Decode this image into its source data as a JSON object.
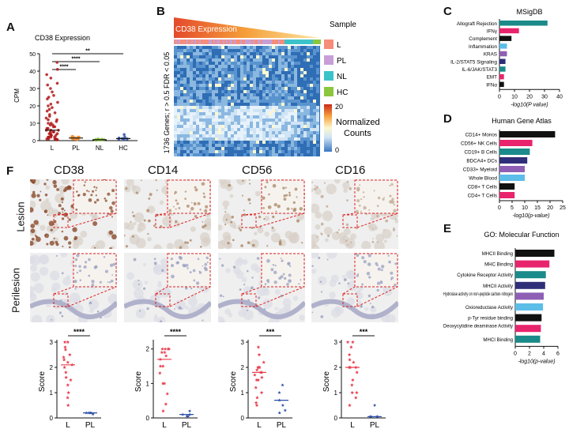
{
  "panel_letters": {
    "a": "A",
    "b": "B",
    "c": "C",
    "d": "D",
    "e": "E",
    "f": "F"
  },
  "colors": {
    "red": "#e0201c",
    "pink": "#e8246d",
    "black": "#111111",
    "teal": "#1a8a8a",
    "lightblue": "#5bbde8",
    "purple": "#8e5fb5",
    "navy": "#2f2e78",
    "orange": "#f08a2c",
    "lavender": "#c79fd6",
    "green": "#8cc63f",
    "salmon": "#f58d7a",
    "cyan": "#3cc3c9"
  },
  "panel_a": {
    "chart_data": {
      "type": "scatter",
      "title": "CD38 Expression",
      "ylabel": "CPM",
      "categories": [
        "L",
        "PL",
        "NL",
        "HC"
      ],
      "yticks": [
        "0",
        "10",
        "20",
        "30",
        "40",
        "50"
      ],
      "ylim": [
        0,
        50
      ],
      "medians": [
        6,
        1.5,
        0.5,
        1.2
      ],
      "significance": [
        "****",
        "****",
        "**"
      ]
    }
  },
  "panel_b": {
    "title": "CD38 Expression",
    "ylabel": "1736 Genes; r > 0.5 FDR < 0.05",
    "legend_title": "Sample",
    "legend": [
      {
        "label": "L",
        "color": "#f58d7a"
      },
      {
        "label": "PL",
        "color": "#c79fd6"
      },
      {
        "label": "NL",
        "color": "#3cc3c9"
      },
      {
        "label": "HC",
        "color": "#8cc63f"
      }
    ],
    "scale_max": "20",
    "scale_min": "0",
    "scale_label_1": "Normalized",
    "scale_label_2": "Counts"
  },
  "panel_c": {
    "chart_data": {
      "type": "bar",
      "title": "MSigDB",
      "xlabel": "-log10(P value)",
      "categories": [
        "Allograft Rejection",
        "IFNγ",
        "Complement",
        "Inflammation",
        "KRAS",
        "IL-2/STAT5 Signaling",
        "IL-6/JAK/STAT3",
        "EMT",
        "IFNα"
      ],
      "values": [
        32,
        13,
        8,
        5,
        5,
        4,
        4,
        3,
        3
      ],
      "colors": [
        "#1a8a8a",
        "#e8246d",
        "#111111",
        "#5bbde8",
        "#8e5fb5",
        "#2f2e78",
        "#1a8a8a",
        "#e8246d",
        "#111111"
      ],
      "xticks": [
        "0",
        "10",
        "20",
        "30",
        "40"
      ],
      "xlim": [
        0,
        40
      ]
    }
  },
  "panel_d": {
    "chart_data": {
      "type": "bar",
      "title": "Human  Gene  Atlas",
      "xlabel": "-log10(p-value)",
      "categories": [
        "CD14+ Monos",
        "CD56+ NK Cells",
        "CD19+ B Cells",
        "BDCA4+ DCs",
        "CD33+ Myeloid",
        "Whole Blood",
        "CD8+ T Cells",
        "CD4+ T Cells"
      ],
      "values": [
        22,
        13,
        12,
        11,
        10,
        10,
        6,
        6
      ],
      "colors": [
        "#111111",
        "#e8246d",
        "#1a8a8a",
        "#2f2e78",
        "#8e5fb5",
        "#5bbde8",
        "#111111",
        "#e8246d"
      ],
      "xticks": [
        "0",
        "5",
        "10",
        "15",
        "20",
        "25"
      ],
      "xlim": [
        0,
        25
      ]
    }
  },
  "panel_e": {
    "chart_data": {
      "type": "bar",
      "title": "GO: Molecular Function",
      "xlabel": "-log10(p-value)",
      "categories": [
        "MHCII Binding",
        "MHC Binding",
        "Cytokine Receptor Activity",
        "MHCII Activity",
        "Hydrolase activity on non-peptide carbon-nitrogen",
        "Oxioreductase Activity",
        "p-Tyr residue binding",
        "Deoxycytidine deaminase Activity",
        "MHCI Binding"
      ],
      "values": [
        5.5,
        4.8,
        4.3,
        4.2,
        4.0,
        3.9,
        3.7,
        3.6,
        3.5
      ],
      "colors": [
        "#111111",
        "#e8246d",
        "#1a8a8a",
        "#2f2e78",
        "#8e5fb5",
        "#5bbde8",
        "#111111",
        "#e8246d",
        "#1a8a8a"
      ],
      "xticks": [
        "0",
        "2",
        "4",
        "6"
      ],
      "xlim": [
        0,
        6
      ]
    }
  },
  "panel_f": {
    "markers": [
      "CD38",
      "CD14",
      "CD56",
      "CD16"
    ],
    "row_labels": [
      "Lesion",
      "Perilesion"
    ],
    "tissue_colors": [
      "#8a4a2a",
      "#b08a6a",
      "#a8865f",
      "#c0a890"
    ],
    "score_charts": [
      {
        "type": "scatter",
        "marker": "CD38",
        "ylabel": "Score",
        "categories": [
          "L",
          "PL"
        ],
        "significance": "****",
        "yticks": [
          "0",
          "1",
          "2",
          "3"
        ],
        "ylim": [
          0,
          3
        ],
        "L": [
          3,
          3,
          2.8,
          2.7,
          2.5,
          2.4,
          2.3,
          2.2,
          2.1,
          2.0,
          1.8,
          1.6,
          1.5,
          1.3,
          1.0,
          0.8,
          0.5
        ],
        "PL": [
          0.2,
          0.2,
          0.15,
          0.2,
          0.2
        ]
      },
      {
        "type": "scatter",
        "marker": "CD14",
        "ylabel": "Score",
        "categories": [
          "L",
          "PL"
        ],
        "significance": "****",
        "yticks": [
          "0",
          "1",
          "2"
        ],
        "ylim": [
          0,
          2.2
        ],
        "L": [
          2,
          2,
          2,
          2,
          1.9,
          1.9,
          1.8,
          1.7,
          1.5,
          1.5,
          1.3,
          1.0,
          1.0,
          0.7,
          0.4,
          0.2
        ],
        "PL": [
          0.1,
          0.05,
          0.1,
          0.05,
          0.2
        ]
      },
      {
        "type": "scatter",
        "marker": "CD56",
        "ylabel": "Score",
        "categories": [
          "L",
          "PL"
        ],
        "significance": "***",
        "yticks": [
          "0",
          "1",
          "2",
          "3"
        ],
        "ylim": [
          0,
          3
        ],
        "L": [
          2.8,
          2.5,
          2.2,
          2.0,
          2.0,
          2.0,
          1.9,
          1.8,
          1.8,
          1.7,
          1.6,
          1.5,
          1.5,
          1.2,
          1.0,
          0.8,
          0.6,
          0.5
        ],
        "PL": [
          1.3,
          1.0,
          0.7,
          0.5,
          0.3,
          0.2
        ]
      },
      {
        "type": "scatter",
        "marker": "CD16",
        "ylabel": "Score",
        "categories": [
          "L",
          "PL"
        ],
        "significance": "***",
        "yticks": [
          "0",
          "1",
          "2",
          "3"
        ],
        "ylim": [
          0,
          3
        ],
        "L": [
          3,
          3,
          2.8,
          2.5,
          2.3,
          2.2,
          2.0,
          2.0,
          2.0,
          1.8,
          1.5,
          1.3,
          1.0,
          1.0,
          0.8,
          0.5
        ],
        "PL": [
          0.5,
          0.05,
          0.05,
          0.05,
          0.05
        ]
      }
    ]
  }
}
